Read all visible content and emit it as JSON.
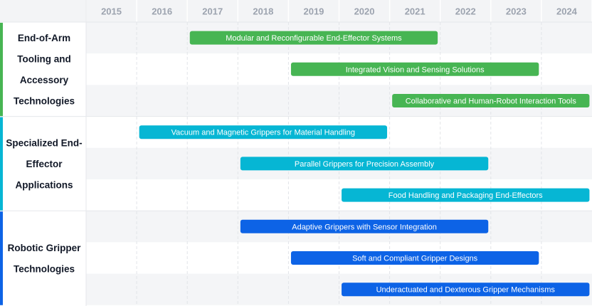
{
  "chart_data": {
    "type": "gantt",
    "years": [
      "2015",
      "2016",
      "2017",
      "2018",
      "2019",
      "2020",
      "2021",
      "2022",
      "2023",
      "2024"
    ],
    "x_range": [
      2015,
      2025
    ],
    "groups": [
      {
        "label": [
          "End-of-Arm",
          "Tooling and",
          "Accessory",
          "Technologies"
        ],
        "color": "#47b553",
        "tasks": [
          {
            "name": "Modular and Reconfigurable End-Effector Systems",
            "start": 2017.05,
            "end": 2021.95
          },
          {
            "name": "Integrated Vision and Sensing Solutions",
            "start": 2019.05,
            "end": 2023.95
          },
          {
            "name": "Collaborative and Human-Robot Interaction Tools",
            "start": 2021.05,
            "end": 2024.95
          }
        ]
      },
      {
        "label": [
          "Specialized End-",
          "Effector",
          "Applications"
        ],
        "color": "#06b6d4",
        "tasks": [
          {
            "name": "Vacuum and Magnetic Grippers for Material Handling",
            "start": 2016.05,
            "end": 2020.95
          },
          {
            "name": "Parallel Grippers for Precision Assembly",
            "start": 2018.05,
            "end": 2022.95
          },
          {
            "name": "Food Handling and Packaging End-Effectors",
            "start": 2020.05,
            "end": 2024.95
          }
        ]
      },
      {
        "label": [
          "Robotic Gripper",
          "Technologies"
        ],
        "color": "#0d63e6",
        "tasks": [
          {
            "name": "Adaptive Grippers with Sensor Integration",
            "start": 2018.05,
            "end": 2022.95
          },
          {
            "name": "Soft and Compliant Gripper Designs",
            "start": 2019.05,
            "end": 2023.95
          },
          {
            "name": "Underactuated and Dexterous Gripper Mechanisms",
            "start": 2020.05,
            "end": 2024.95
          }
        ]
      }
    ],
    "grid": true
  }
}
